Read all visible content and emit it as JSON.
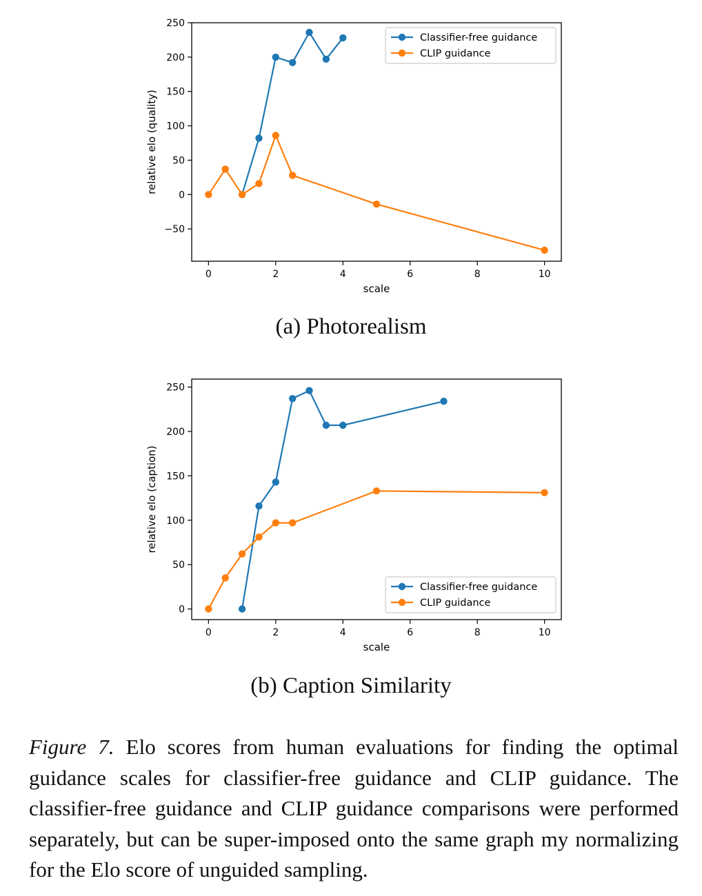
{
  "chart_data": [
    {
      "type": "line",
      "subcaption": "(a) Photorealism",
      "xlabel": "scale",
      "ylabel": "relative elo (quality)",
      "xlim": [
        -0.5,
        10.5
      ],
      "ylim": [
        -97,
        250
      ],
      "xticks": [
        0,
        2,
        4,
        6,
        8,
        10
      ],
      "yticks": [
        -50,
        0,
        50,
        100,
        150,
        200,
        250
      ],
      "ytick_labels": [
        "−50",
        "0",
        "50",
        "100",
        "150",
        "200",
        "250"
      ],
      "legend_position": "top-right",
      "grid": false,
      "series": [
        {
          "name": "Classifier-free guidance",
          "color": "#1f77b4",
          "x": [
            1,
            1.5,
            2,
            2.5,
            3,
            3.5,
            4
          ],
          "y": [
            0,
            82,
            200,
            192,
            236,
            197,
            228
          ]
        },
        {
          "name": "CLIP guidance",
          "color": "#ff7f0e",
          "x": [
            0,
            0.5,
            1,
            1.5,
            2,
            2.5,
            5,
            10
          ],
          "y": [
            0,
            37,
            0,
            16,
            86,
            28,
            -14,
            -81
          ]
        }
      ]
    },
    {
      "type": "line",
      "subcaption": "(b) Caption Similarity",
      "xlabel": "scale",
      "ylabel": "relative elo (caption)",
      "xlim": [
        -0.5,
        10.5
      ],
      "ylim": [
        -12,
        259
      ],
      "xticks": [
        0,
        2,
        4,
        6,
        8,
        10
      ],
      "yticks": [
        0,
        50,
        100,
        150,
        200,
        250
      ],
      "ytick_labels": [
        "0",
        "50",
        "100",
        "150",
        "200",
        "250"
      ],
      "legend_position": "bottom-right",
      "grid": false,
      "series": [
        {
          "name": "Classifier-free guidance",
          "color": "#1f77b4",
          "x": [
            1,
            1.5,
            2,
            2.5,
            3,
            3.5,
            4,
            7
          ],
          "y": [
            0,
            116,
            143,
            237,
            246,
            207,
            207,
            234
          ]
        },
        {
          "name": "CLIP guidance",
          "color": "#ff7f0e",
          "x": [
            0,
            0.5,
            1,
            1.5,
            2,
            2.5,
            5,
            10
          ],
          "y": [
            0,
            35,
            62,
            81,
            97,
            97,
            133,
            131
          ]
        }
      ]
    }
  ],
  "figure_caption": {
    "label": "Figure 7.",
    "text": "Elo scores from human evaluations for finding the optimal guidance scales for classifier-free guidance and CLIP guidance. The classifier-free guidance and CLIP guidance comparisons were performed separately, but can be super-imposed onto the same graph my normalizing for the Elo score of unguided sampling."
  }
}
